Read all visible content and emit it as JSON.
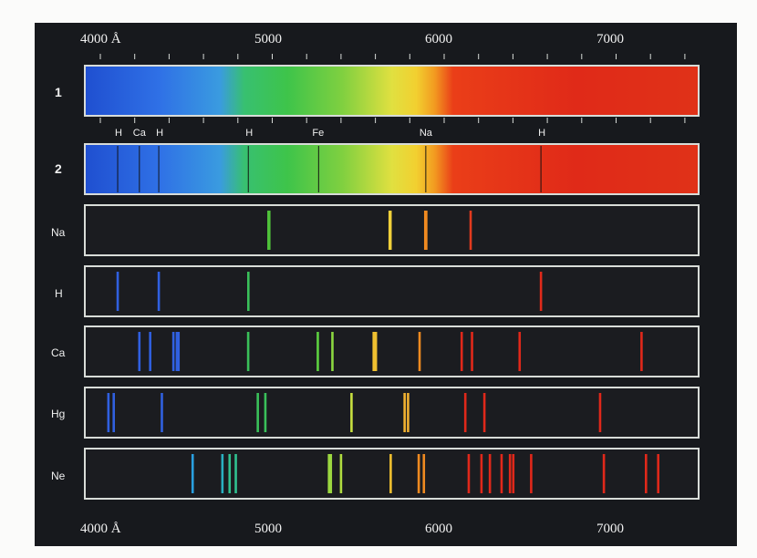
{
  "axis": {
    "unit_label": "Å",
    "top_ticks": [
      "4000 Å",
      "5000",
      "6000",
      "7000"
    ],
    "bottom_ticks": [
      "4000 Å",
      "5000",
      "6000",
      "7000"
    ],
    "tick_values": [
      4000,
      5000,
      6000,
      7000
    ],
    "range": [
      3930,
      7500
    ]
  },
  "panels": [
    {
      "id": "continuous",
      "label": "1",
      "kind": "continuous"
    },
    {
      "id": "absorption",
      "label": "2",
      "kind": "absorption",
      "line_labels": [
        {
          "text": "H",
          "wavelength": 4101
        },
        {
          "text": "Ca",
          "wavelength": 4227
        },
        {
          "text": "H",
          "wavelength": 4340
        },
        {
          "text": "H",
          "wavelength": 4861
        },
        {
          "text": "Fe",
          "wavelength": 5270
        },
        {
          "text": "Na",
          "wavelength": 5893
        },
        {
          "text": "H",
          "wavelength": 6563
        }
      ],
      "lines": [
        4101,
        4227,
        4340,
        4861,
        5270,
        5893,
        6563
      ]
    },
    {
      "id": "sodium",
      "label": "Na",
      "kind": "emission",
      "lines": [
        {
          "wavelength": 4978,
          "color": "#4fc23a"
        },
        {
          "wavelength": 4983,
          "color": "#4fc23a"
        },
        {
          "wavelength": 5683,
          "color": "#f0d03a"
        },
        {
          "wavelength": 5688,
          "color": "#f0d03a"
        },
        {
          "wavelength": 5890,
          "color": "#f08a20"
        },
        {
          "wavelength": 5896,
          "color": "#f08a20"
        },
        {
          "wavelength": 6154,
          "color": "#e23a1e"
        }
      ]
    },
    {
      "id": "hydrogen",
      "label": "H",
      "kind": "emission",
      "lines": [
        {
          "wavelength": 4101,
          "color": "#3060e0"
        },
        {
          "wavelength": 4340,
          "color": "#3060e0"
        },
        {
          "wavelength": 4861,
          "color": "#3ac05a"
        },
        {
          "wavelength": 6563,
          "color": "#e02a1a"
        }
      ]
    },
    {
      "id": "calcium",
      "label": "Ca",
      "kind": "emission",
      "lines": [
        {
          "wavelength": 4227,
          "color": "#3060e0"
        },
        {
          "wavelength": 4290,
          "color": "#3060e0"
        },
        {
          "wavelength": 4425,
          "color": "#3060e0"
        },
        {
          "wavelength": 4445,
          "color": "#3060e0"
        },
        {
          "wavelength": 4455,
          "color": "#3060e0"
        },
        {
          "wavelength": 4860,
          "color": "#3ac05a"
        },
        {
          "wavelength": 5265,
          "color": "#5cd040"
        },
        {
          "wavelength": 5350,
          "color": "#8cd840"
        },
        {
          "wavelength": 5590,
          "color": "#f0c030"
        },
        {
          "wavelength": 5603,
          "color": "#f0c030"
        },
        {
          "wavelength": 5857,
          "color": "#f08a20"
        },
        {
          "wavelength": 6102,
          "color": "#e0281a"
        },
        {
          "wavelength": 6162,
          "color": "#e0281a"
        },
        {
          "wavelength": 6439,
          "color": "#e0281a"
        },
        {
          "wavelength": 7148,
          "color": "#e0281a"
        }
      ]
    },
    {
      "id": "mercury",
      "label": "Hg",
      "kind": "emission",
      "lines": [
        {
          "wavelength": 4047,
          "color": "#3060e0"
        },
        {
          "wavelength": 4078,
          "color": "#3060e0"
        },
        {
          "wavelength": 4358,
          "color": "#3060e0"
        },
        {
          "wavelength": 4916,
          "color": "#3ac05a"
        },
        {
          "wavelength": 4960,
          "color": "#3ac05a"
        },
        {
          "wavelength": 5461,
          "color": "#c8e040"
        },
        {
          "wavelength": 5770,
          "color": "#f0b030"
        },
        {
          "wavelength": 5790,
          "color": "#f0b030"
        },
        {
          "wavelength": 6123,
          "color": "#e0281a"
        },
        {
          "wavelength": 6234,
          "color": "#e0281a"
        },
        {
          "wavelength": 6907,
          "color": "#e0281a"
        }
      ]
    },
    {
      "id": "neon",
      "label": "Ne",
      "kind": "emission",
      "lines": [
        {
          "wavelength": 4537,
          "color": "#2aa0e0"
        },
        {
          "wavelength": 4710,
          "color": "#2ab0c0"
        },
        {
          "wavelength": 4752,
          "color": "#30c090"
        },
        {
          "wavelength": 4788,
          "color": "#30c090"
        },
        {
          "wavelength": 5330,
          "color": "#9cd840"
        },
        {
          "wavelength": 5341,
          "color": "#9cd840"
        },
        {
          "wavelength": 5400,
          "color": "#b0dc40"
        },
        {
          "wavelength": 5689,
          "color": "#f0c030"
        },
        {
          "wavelength": 5852,
          "color": "#f08a20"
        },
        {
          "wavelength": 5882,
          "color": "#f08a20"
        },
        {
          "wavelength": 6143,
          "color": "#e0281a"
        },
        {
          "wavelength": 6217,
          "color": "#e0281a"
        },
        {
          "wavelength": 6266,
          "color": "#e0281a"
        },
        {
          "wavelength": 6334,
          "color": "#e0281a"
        },
        {
          "wavelength": 6383,
          "color": "#e0281a"
        },
        {
          "wavelength": 6402,
          "color": "#e0281a"
        },
        {
          "wavelength": 6506,
          "color": "#e0281a"
        },
        {
          "wavelength": 6929,
          "color": "#e0281a"
        },
        {
          "wavelength": 7174,
          "color": "#e0281a"
        },
        {
          "wavelength": 7245,
          "color": "#e0281a"
        }
      ]
    }
  ],
  "colors": {
    "background": "#17191d",
    "border": "#d8dcd8",
    "text": "#f2f2f2"
  }
}
